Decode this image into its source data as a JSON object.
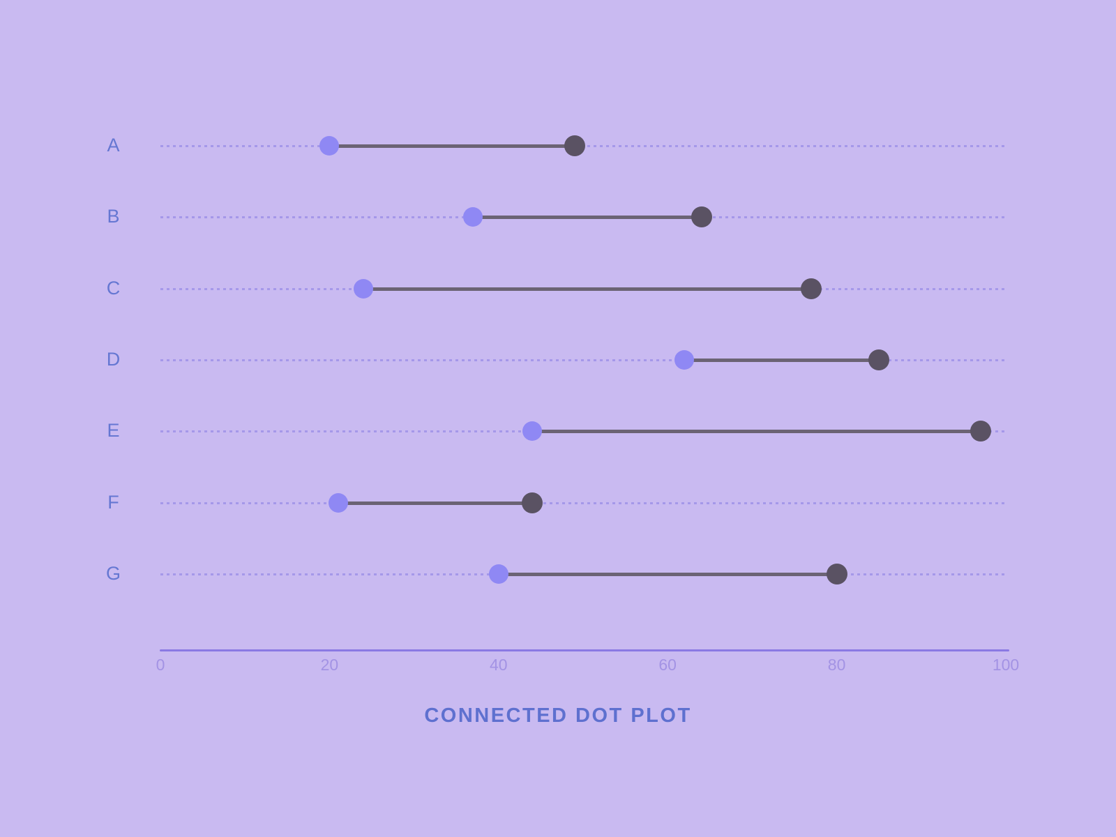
{
  "title": "CONNECTED DOT PLOT",
  "colors": {
    "background": "#c9baf1",
    "category_label": "#6577d2",
    "grid_line": "#a598e9",
    "axis_line": "#8a79e3",
    "tick_label": "#a393e4",
    "connector": "#6b6374",
    "dot_start": "#8f88f4",
    "dot_end": "#5a5263",
    "title_color": "#5e70cf"
  },
  "chart_data": {
    "type": "scatter",
    "subtype": "dumbbell-connected-dot-plot",
    "title": "CONNECTED DOT PLOT",
    "categories": [
      "A",
      "B",
      "C",
      "D",
      "E",
      "F",
      "G"
    ],
    "series": [
      {
        "name": "start-dots",
        "color": "#8f88f4",
        "values": [
          20,
          37,
          24,
          62,
          44,
          21,
          40
        ]
      },
      {
        "name": "end-dots",
        "color": "#5a5263",
        "values": [
          49,
          64,
          77,
          85,
          97,
          44,
          80
        ]
      }
    ],
    "xlim": [
      0,
      100
    ],
    "x_ticks": [
      0,
      20,
      40,
      60,
      80,
      100
    ],
    "xlabel": "",
    "ylabel": "",
    "grid": "dashed horizontal row guides",
    "legend_position": "none"
  }
}
